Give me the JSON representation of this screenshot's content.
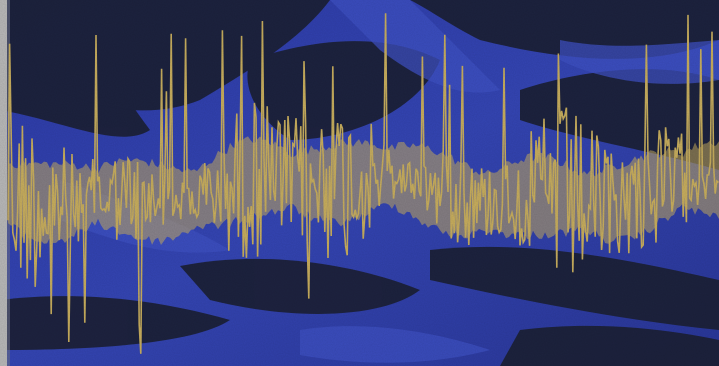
{
  "image": {
    "subject": "waveform-over-blue-folds",
    "colors": {
      "background_blue": "#2f3fae",
      "background_dark": "#1c2136",
      "background_mid": "#3a4bb8",
      "left_edge": "#b9b9b9",
      "wave": "#c8ae5e"
    }
  }
}
